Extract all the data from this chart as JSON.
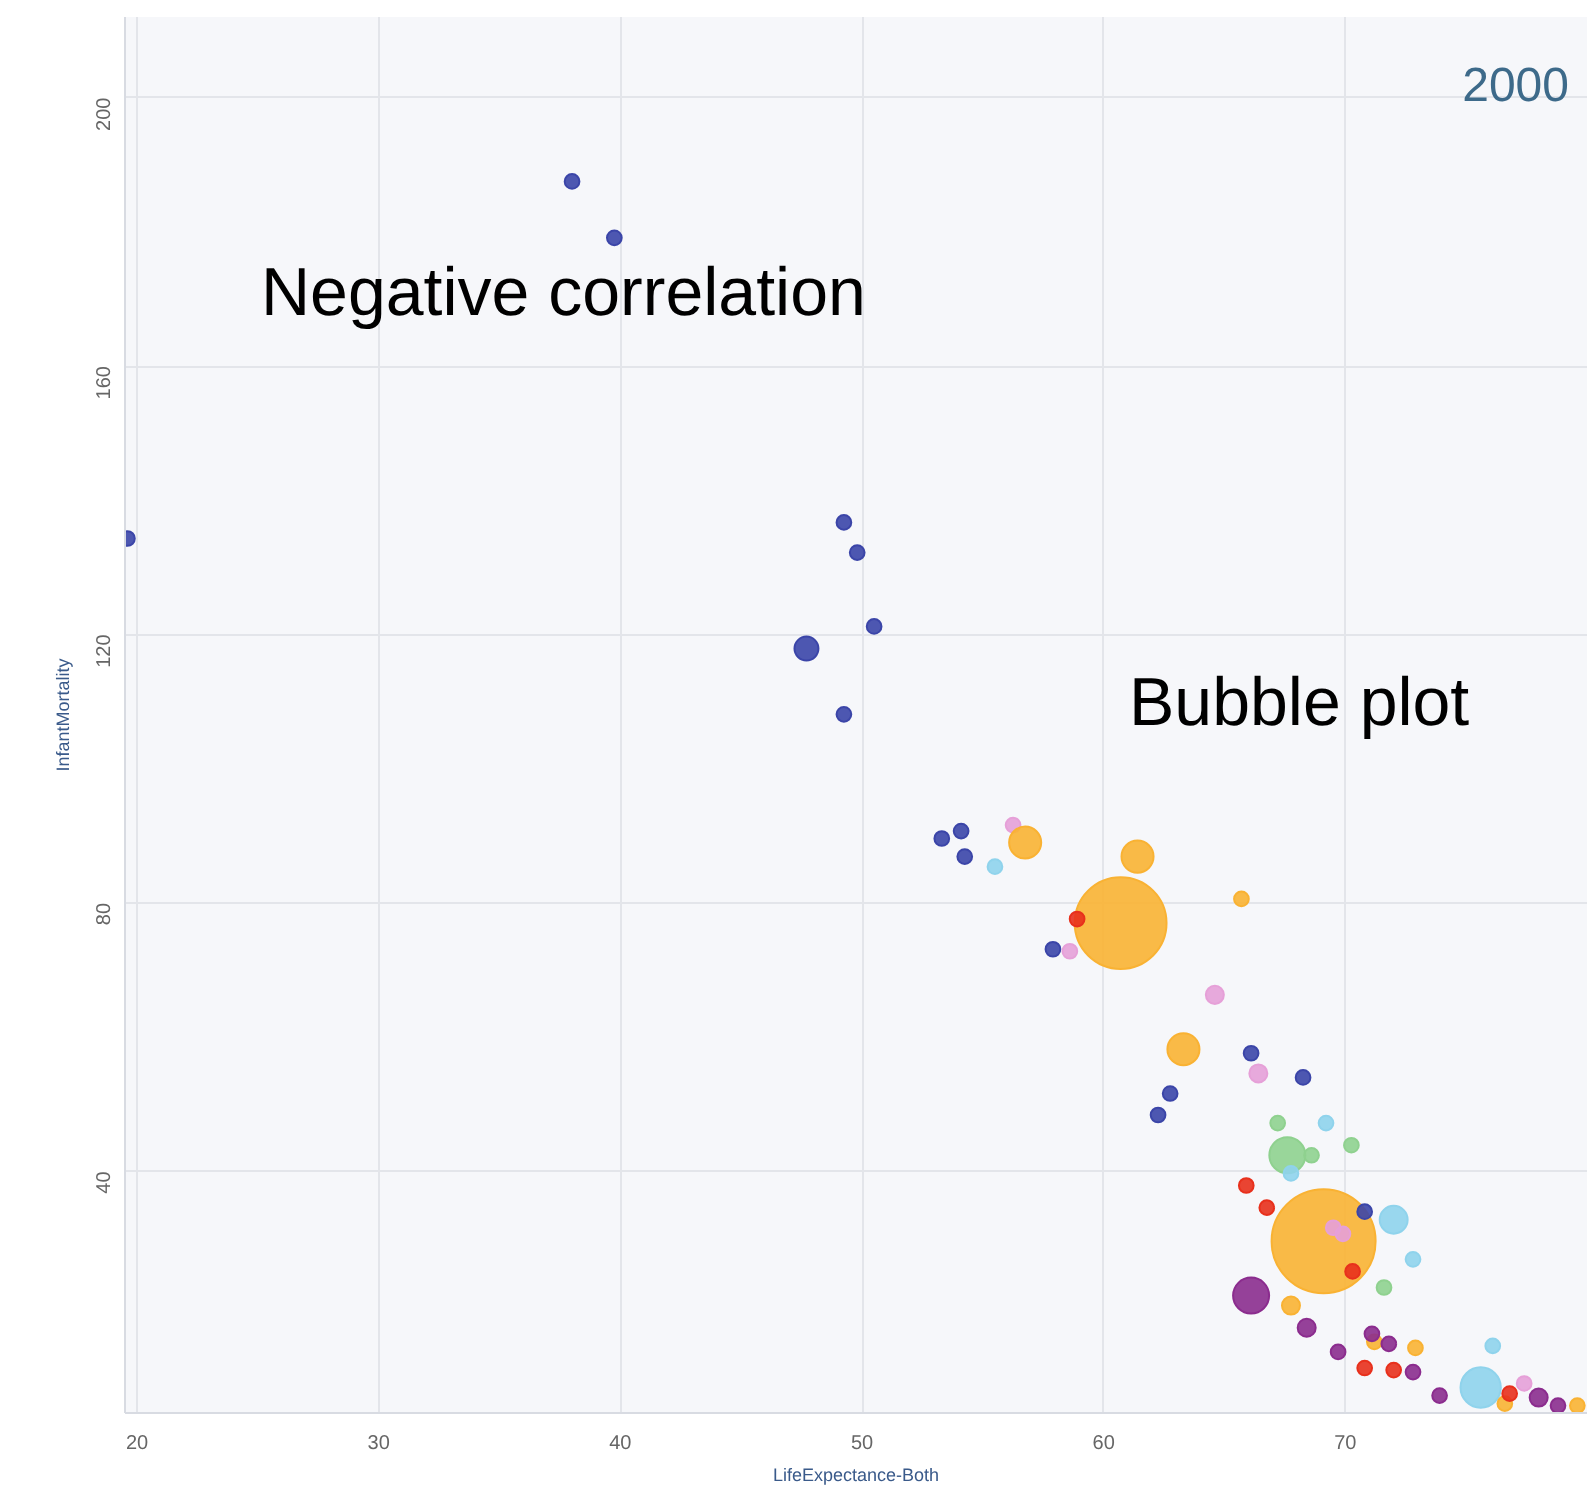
{
  "chart_data": {
    "type": "bubble",
    "title": "2000",
    "xlabel": "LifeExpectance-Both",
    "ylabel": "InfantMortality",
    "annotations": [
      "Negative correlation",
      "Bubble plot"
    ],
    "xlim": [
      19.5,
      80
    ],
    "ylim": [
      4,
      212
    ],
    "xticks": [
      20,
      30,
      40,
      50,
      60,
      70
    ],
    "yticks": [
      40,
      80,
      120,
      160,
      200
    ],
    "grid": true,
    "marker": "circle",
    "series": [
      {
        "color": "#3b45a8",
        "x": [
          38.0,
          39.75,
          19.6,
          49.25,
          49.8,
          50.5,
          47.7,
          49.25,
          53.3,
          54.1,
          54.25,
          57.9,
          66.1,
          68.25,
          62.75,
          62.25,
          70.8
        ],
        "values": [
          187.5,
          179.1,
          134.3,
          136.7,
          132.2,
          121.2,
          117.9,
          108.1,
          89.6,
          90.7,
          86.9,
          73.1,
          57.6,
          54.0,
          51.6,
          48.4,
          34.0
        ],
        "sizes": [
          0.02,
          0.02,
          0.02,
          0.02,
          0.02,
          0.02,
          0.053,
          0.02,
          0.02,
          0.02,
          0.02,
          0.02,
          0.02,
          0.02,
          0.02,
          0.02,
          0.02
        ]
      },
      {
        "color": "#e6a0d8",
        "x": [
          56.25,
          58.6,
          64.6,
          66.4,
          69.5,
          69.9,
          77.4
        ],
        "values": [
          91.6,
          72.8,
          66.3,
          54.6,
          31.6,
          30.7,
          8.4
        ],
        "sizes": [
          0.02,
          0.02,
          0.03,
          0.03,
          0.02,
          0.02,
          0.02
        ]
      },
      {
        "color": "#8fd3ec",
        "x": [
          55.5,
          69.2,
          67.75,
          72.0,
          72.8,
          76.1,
          75.6
        ],
        "values": [
          85.4,
          47.2,
          39.7,
          32.8,
          26.9,
          14.0,
          7.8
        ],
        "sizes": [
          0.02,
          0.02,
          0.02,
          0.072,
          0.02,
          0.02,
          0.15
        ]
      },
      {
        "color": "#f9b233",
        "x": [
          56.75,
          61.4,
          65.7,
          60.7,
          63.3,
          69.1,
          67.75,
          71.2,
          72.9,
          79.6,
          76.6
        ],
        "values": [
          89.0,
          86.9,
          80.6,
          77.0,
          58.2,
          29.6,
          20.0,
          14.6,
          13.7,
          5.1,
          5.4
        ],
        "sizes": [
          0.095,
          0.095,
          0.02,
          0.78,
          0.095,
          1,
          0.03,
          0.02,
          0.02,
          0.02,
          0.02
        ]
      },
      {
        "color": "#e8301c",
        "x": [
          58.9,
          65.9,
          66.75,
          70.3,
          70.8,
          72.0,
          76.8
        ],
        "values": [
          77.6,
          37.9,
          34.6,
          25.1,
          10.7,
          10.4,
          6.9
        ],
        "sizes": [
          0.02,
          0.02,
          0.02,
          0.02,
          0.02,
          0.02,
          0.02
        ]
      },
      {
        "color": "#8fd18f",
        "x": [
          67.2,
          70.25,
          67.6,
          68.6,
          71.6
        ],
        "values": [
          47.2,
          43.9,
          42.4,
          42.4,
          22.7
        ],
        "sizes": [
          0.02,
          0.02,
          0.12,
          0.02,
          0.02
        ]
      },
      {
        "color": "#8b2c8e",
        "x": [
          66.1,
          68.4,
          69.7,
          71.1,
          71.8,
          72.8,
          73.9,
          78.0,
          78.8
        ],
        "values": [
          21.5,
          16.7,
          13.1,
          15.8,
          14.3,
          10.1,
          6.6,
          6.3,
          5.1
        ],
        "sizes": [
          0.12,
          0.03,
          0.02,
          0.02,
          0.02,
          0.02,
          0.02,
          0.03,
          0.02
        ]
      }
    ]
  }
}
